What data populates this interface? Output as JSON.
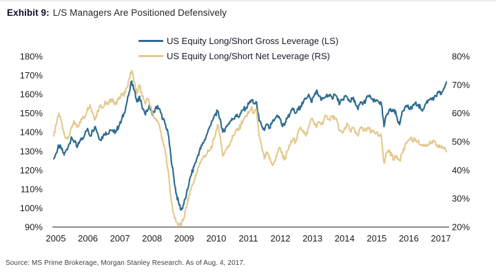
{
  "title": {
    "prefix": "Exhibit 9:",
    "text": "L/S Managers Are Positioned Defensively"
  },
  "source": "Source: MS Prime Brokerage, Morgan Stanley Research. As of Aug. 4, 2017.",
  "legend": [
    {
      "label": "US Equity Long/Short Gross Leverage (LS)",
      "color": "#2d6d8e"
    },
    {
      "label": "US Equity Long/Short Net Leverage (RS)",
      "color": "#e4c98e"
    }
  ],
  "chart_data": {
    "type": "line",
    "title": "L/S Managers Are Positioned Defensively",
    "x_unit": "monthly",
    "x_range": [
      2005.0,
      2017.6
    ],
    "grid": false,
    "legend_position": "top-center",
    "axes": {
      "x": {
        "ticks": [
          "2005",
          "2006",
          "2007",
          "2008",
          "2009",
          "2010",
          "2011",
          "2012",
          "2013",
          "2014",
          "2015",
          "2016",
          "2017"
        ]
      },
      "left": {
        "min": 90,
        "max": 180,
        "step": 10,
        "ticks": [
          "90%",
          "100%",
          "110%",
          "120%",
          "130%",
          "140%",
          "150%",
          "160%",
          "170%",
          "180%"
        ]
      },
      "right": {
        "min": 20,
        "max": 80,
        "step": 10,
        "ticks": [
          "20%",
          "30%",
          "40%",
          "50%",
          "60%",
          "70%",
          "80%"
        ]
      }
    },
    "series": [
      {
        "name": "US Equity Long/Short Gross Leverage (LS)",
        "axis": "left",
        "color": "#2d6d8e",
        "noise": 1.3,
        "values": [
          126,
          129,
          133,
          131,
          128,
          131,
          134,
          137,
          135,
          132,
          135,
          137,
          139,
          142,
          138,
          141,
          143,
          139,
          136,
          138,
          140,
          139,
          141,
          140,
          141,
          143,
          146,
          150,
          155,
          161,
          167,
          162,
          156,
          159,
          153,
          150,
          151,
          154,
          149,
          152,
          154,
          151,
          147,
          144,
          139,
          128,
          118,
          108,
          103,
          99,
          102,
          107,
          113,
          118,
          122,
          126,
          130,
          133,
          136,
          139,
          143,
          146,
          149,
          151,
          147,
          140,
          142,
          144,
          146,
          147,
          149,
          148,
          150,
          152,
          153,
          155,
          157,
          155,
          156,
          146,
          143,
          141,
          144,
          142,
          145,
          147,
          149,
          147,
          143,
          145,
          148,
          150,
          152,
          150,
          152,
          154,
          156,
          158,
          160,
          156,
          159,
          162,
          159,
          157,
          158,
          160,
          159,
          158,
          160,
          158,
          155,
          157,
          159,
          158,
          156,
          158,
          155,
          152,
          156,
          155,
          157,
          159,
          158,
          156,
          157,
          156,
          155,
          143,
          149,
          152,
          151,
          152,
          148,
          144,
          151,
          153,
          154,
          152,
          154,
          155,
          154,
          153,
          152,
          155,
          157,
          158,
          157,
          159,
          161,
          160,
          163,
          166.5
        ]
      },
      {
        "name": "US Equity Long/Short Net Leverage (RS)",
        "axis": "right",
        "color": "#e4c98e",
        "noise": 0.9,
        "values": [
          52,
          56,
          60,
          57,
          53,
          51,
          52,
          55,
          57,
          55,
          57,
          58,
          59,
          62,
          63,
          60,
          58,
          61,
          63,
          62,
          64,
          63,
          65,
          64,
          63,
          65,
          67,
          66,
          69,
          72,
          75,
          71,
          67,
          70,
          66,
          64,
          65,
          63,
          60,
          58,
          57,
          54,
          50,
          46,
          40,
          31,
          25,
          22,
          21,
          20.5,
          23,
          27,
          31,
          34,
          36,
          39,
          42,
          44,
          45,
          46,
          47,
          49,
          52,
          56,
          52,
          45,
          47,
          48,
          50,
          52,
          54,
          54,
          56,
          58,
          59,
          60,
          62,
          60,
          61,
          52,
          48,
          44,
          46,
          44,
          42,
          43,
          46,
          48,
          45,
          44,
          47,
          49,
          51,
          50,
          53,
          55,
          54,
          52,
          55,
          58,
          57,
          55,
          57,
          56,
          58,
          59,
          58,
          59,
          58,
          57,
          54,
          53,
          55,
          56,
          54,
          55,
          53,
          52,
          55,
          54,
          54,
          55,
          53,
          54,
          53,
          52,
          52,
          42.5,
          46,
          47,
          45,
          44,
          45,
          43.5,
          46,
          48,
          50,
          51,
          50.5,
          51,
          50,
          49,
          48.5,
          49,
          49,
          49.5,
          50,
          49,
          48,
          48.5,
          47.5,
          46.5
        ]
      }
    ]
  }
}
